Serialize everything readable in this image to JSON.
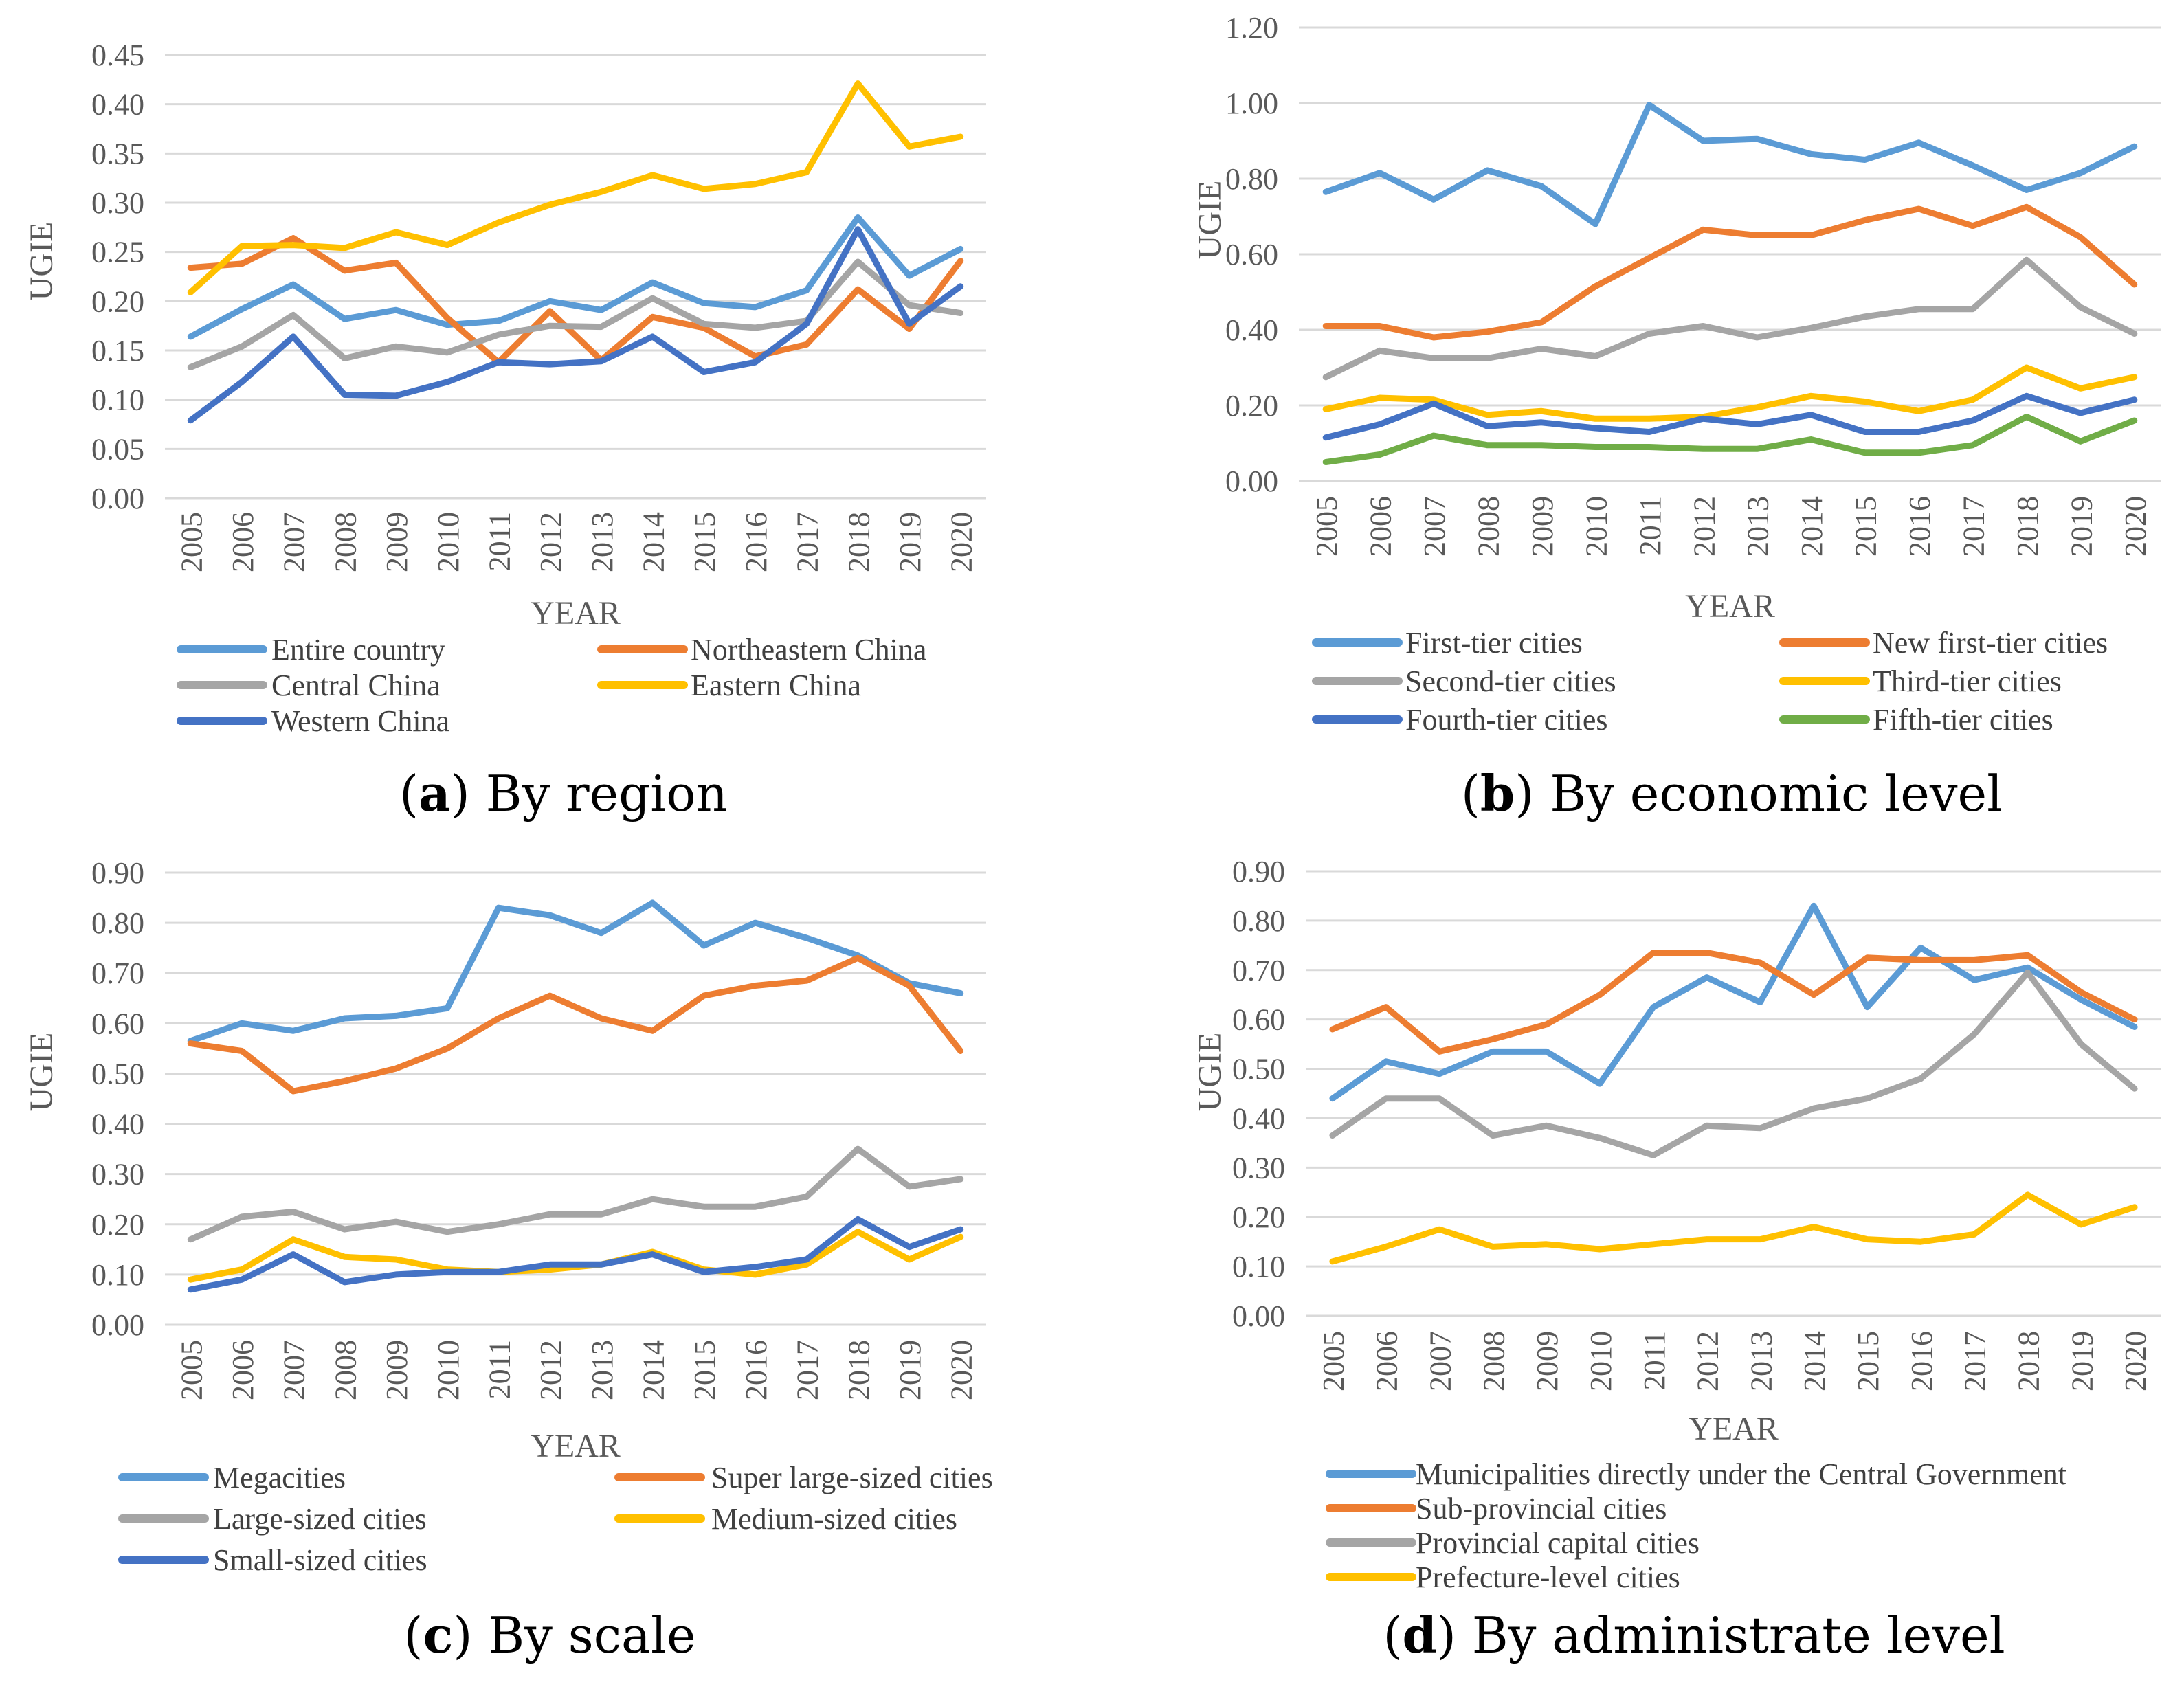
{
  "colors": {
    "blue_light": "#5b9bd5",
    "orange": "#ed7d31",
    "gray": "#a5a5a5",
    "yellow": "#ffc000",
    "blue_dark": "#4472c4",
    "green": "#70ad47",
    "grid": "#d9d9d9",
    "tick_text": "#595959"
  },
  "chart_data": [
    {
      "id": "a",
      "type": "line",
      "caption_letter": "a",
      "caption_text": " By region",
      "xlabel": "YEAR",
      "ylabel": "UGIE",
      "x": [
        "2005",
        "2006",
        "2007",
        "2008",
        "2009",
        "2010",
        "2011",
        "2012",
        "2013",
        "2014",
        "2015",
        "2016",
        "2017",
        "2018",
        "2019",
        "2020"
      ],
      "yticks": [
        "0.00",
        "0.05",
        "0.10",
        "0.15",
        "0.20",
        "0.25",
        "0.30",
        "0.35",
        "0.40",
        "0.45"
      ],
      "ylim": [
        0,
        0.45
      ],
      "grid": true,
      "legend_position": "bottom",
      "series": [
        {
          "name": "Entire country",
          "color": "#5b9bd5",
          "values": [
            0.164,
            0.192,
            0.217,
            0.182,
            0.191,
            0.176,
            0.18,
            0.2,
            0.191,
            0.219,
            0.198,
            0.194,
            0.211,
            0.285,
            0.226,
            0.253
          ]
        },
        {
          "name": "Northeastern China",
          "color": "#ed7d31",
          "values": [
            0.234,
            0.238,
            0.264,
            0.231,
            0.239,
            0.183,
            0.138,
            0.19,
            0.14,
            0.184,
            0.173,
            0.144,
            0.156,
            0.212,
            0.172,
            0.241
          ]
        },
        {
          "name": "Central China",
          "color": "#a5a5a5",
          "values": [
            0.133,
            0.154,
            0.186,
            0.142,
            0.154,
            0.148,
            0.166,
            0.175,
            0.174,
            0.203,
            0.177,
            0.173,
            0.18,
            0.24,
            0.196,
            0.188
          ]
        },
        {
          "name": "Eastern China",
          "color": "#ffc000",
          "values": [
            0.209,
            0.256,
            0.257,
            0.254,
            0.27,
            0.257,
            0.28,
            0.298,
            0.311,
            0.328,
            0.314,
            0.319,
            0.331,
            0.421,
            0.357,
            0.367
          ]
        },
        {
          "name": "Western China",
          "color": "#4472c4",
          "values": [
            0.079,
            0.118,
            0.164,
            0.105,
            0.104,
            0.118,
            0.138,
            0.136,
            0.139,
            0.164,
            0.128,
            0.138,
            0.177,
            0.273,
            0.177,
            0.215
          ]
        }
      ]
    },
    {
      "id": "b",
      "type": "line",
      "caption_letter": "b",
      "caption_text": " By economic level",
      "xlabel": "YEAR",
      "ylabel": "UGIE",
      "x": [
        "2005",
        "2006",
        "2007",
        "2008",
        "2009",
        "2010",
        "2011",
        "2012",
        "2013",
        "2014",
        "2015",
        "2016",
        "2017",
        "2018",
        "2019",
        "2020"
      ],
      "yticks": [
        "0.00",
        "0.20",
        "0.40",
        "0.60",
        "0.80",
        "1.00",
        "1.20"
      ],
      "ylim": [
        0,
        1.2
      ],
      "grid": true,
      "legend_position": "bottom",
      "series": [
        {
          "name": "First-tier cities",
          "color": "#5b9bd5",
          "values": [
            0.765,
            0.815,
            0.745,
            0.822,
            0.78,
            0.68,
            0.995,
            0.9,
            0.905,
            0.865,
            0.85,
            0.895,
            0.835,
            0.77,
            0.815,
            0.885
          ]
        },
        {
          "name": "New first-tier cities",
          "color": "#ed7d31",
          "values": [
            0.41,
            0.41,
            0.38,
            0.395,
            0.42,
            0.515,
            0.59,
            0.665,
            0.65,
            0.65,
            0.69,
            0.72,
            0.675,
            0.725,
            0.645,
            0.52
          ]
        },
        {
          "name": "Second-tier cities",
          "color": "#a5a5a5",
          "values": [
            0.275,
            0.345,
            0.325,
            0.325,
            0.35,
            0.33,
            0.39,
            0.41,
            0.38,
            0.405,
            0.435,
            0.455,
            0.455,
            0.585,
            0.46,
            0.39
          ]
        },
        {
          "name": "Third-tier cities",
          "color": "#ffc000",
          "values": [
            0.19,
            0.22,
            0.215,
            0.175,
            0.185,
            0.165,
            0.165,
            0.17,
            0.195,
            0.225,
            0.21,
            0.185,
            0.215,
            0.3,
            0.245,
            0.275
          ]
        },
        {
          "name": "Fourth-tier cities",
          "color": "#4472c4",
          "values": [
            0.115,
            0.15,
            0.205,
            0.145,
            0.155,
            0.14,
            0.13,
            0.165,
            0.15,
            0.175,
            0.13,
            0.13,
            0.16,
            0.225,
            0.18,
            0.215
          ]
        },
        {
          "name": "Fifth-tier cities",
          "color": "#70ad47",
          "values": [
            0.05,
            0.07,
            0.12,
            0.095,
            0.095,
            0.09,
            0.09,
            0.085,
            0.085,
            0.11,
            0.075,
            0.075,
            0.095,
            0.17,
            0.105,
            0.16
          ]
        }
      ]
    },
    {
      "id": "c",
      "type": "line",
      "caption_letter": "c",
      "caption_text": " By scale",
      "xlabel": "YEAR",
      "ylabel": "UGIE",
      "x": [
        "2005",
        "2006",
        "2007",
        "2008",
        "2009",
        "2010",
        "2011",
        "2012",
        "2013",
        "2014",
        "2015",
        "2016",
        "2017",
        "2018",
        "2019",
        "2020"
      ],
      "yticks": [
        "0.00",
        "0.10",
        "0.20",
        "0.30",
        "0.40",
        "0.50",
        "0.60",
        "0.70",
        "0.80",
        "0.90"
      ],
      "ylim": [
        0,
        0.9
      ],
      "grid": true,
      "legend_position": "bottom",
      "series": [
        {
          "name": "Megacities",
          "color": "#5b9bd5",
          "values": [
            0.565,
            0.6,
            0.585,
            0.61,
            0.615,
            0.63,
            0.83,
            0.815,
            0.78,
            0.84,
            0.755,
            0.8,
            0.77,
            0.735,
            0.68,
            0.66
          ]
        },
        {
          "name": "Super large-sized cities",
          "color": "#ed7d31",
          "values": [
            0.56,
            0.545,
            0.465,
            0.485,
            0.51,
            0.55,
            0.61,
            0.655,
            0.61,
            0.585,
            0.655,
            0.675,
            0.685,
            0.73,
            0.675,
            0.545
          ]
        },
        {
          "name": "Large-sized cities",
          "color": "#a5a5a5",
          "values": [
            0.17,
            0.215,
            0.225,
            0.19,
            0.205,
            0.185,
            0.2,
            0.22,
            0.22,
            0.25,
            0.235,
            0.235,
            0.255,
            0.35,
            0.275,
            0.29
          ]
        },
        {
          "name": "Medium-sized cities",
          "color": "#ffc000",
          "values": [
            0.09,
            0.11,
            0.17,
            0.135,
            0.13,
            0.11,
            0.105,
            0.11,
            0.12,
            0.145,
            0.11,
            0.1,
            0.12,
            0.185,
            0.13,
            0.175
          ]
        },
        {
          "name": "Small-sized cities",
          "color": "#4472c4",
          "values": [
            0.07,
            0.09,
            0.14,
            0.085,
            0.1,
            0.105,
            0.105,
            0.12,
            0.12,
            0.14,
            0.105,
            0.115,
            0.13,
            0.21,
            0.155,
            0.19
          ]
        }
      ]
    },
    {
      "id": "d",
      "type": "line",
      "caption_letter": "d",
      "caption_text": " By administrate level",
      "xlabel": "YEAR",
      "ylabel": "UGIE",
      "x": [
        "2005",
        "2006",
        "2007",
        "2008",
        "2009",
        "2010",
        "2011",
        "2012",
        "2013",
        "2014",
        "2015",
        "2016",
        "2017",
        "2018",
        "2019",
        "2020"
      ],
      "yticks": [
        "0.00",
        "0.10",
        "0.20",
        "0.30",
        "0.40",
        "0.50",
        "0.60",
        "0.70",
        "0.80",
        "0.90"
      ],
      "ylim": [
        0,
        0.9
      ],
      "grid": true,
      "legend_position": "bottom",
      "series": [
        {
          "name": "Municipalities directly under the Central Government",
          "color": "#5b9bd5",
          "values": [
            0.44,
            0.515,
            0.49,
            0.535,
            0.535,
            0.47,
            0.625,
            0.685,
            0.635,
            0.83,
            0.625,
            0.745,
            0.68,
            0.705,
            0.64,
            0.585
          ]
        },
        {
          "name": "Sub-provincial cities",
          "color": "#ed7d31",
          "values": [
            0.58,
            0.625,
            0.535,
            0.56,
            0.59,
            0.65,
            0.735,
            0.735,
            0.715,
            0.65,
            0.725,
            0.72,
            0.72,
            0.73,
            0.655,
            0.6
          ]
        },
        {
          "name": "Provincial capital cities",
          "color": "#a5a5a5",
          "values": [
            0.365,
            0.44,
            0.44,
            0.365,
            0.385,
            0.36,
            0.325,
            0.385,
            0.38,
            0.42,
            0.44,
            0.48,
            0.57,
            0.695,
            0.55,
            0.46
          ]
        },
        {
          "name": "Prefecture-level cities",
          "color": "#ffc000",
          "values": [
            0.11,
            0.14,
            0.175,
            0.14,
            0.145,
            0.135,
            0.145,
            0.155,
            0.155,
            0.18,
            0.155,
            0.15,
            0.165,
            0.245,
            0.185,
            0.22
          ]
        }
      ]
    }
  ]
}
